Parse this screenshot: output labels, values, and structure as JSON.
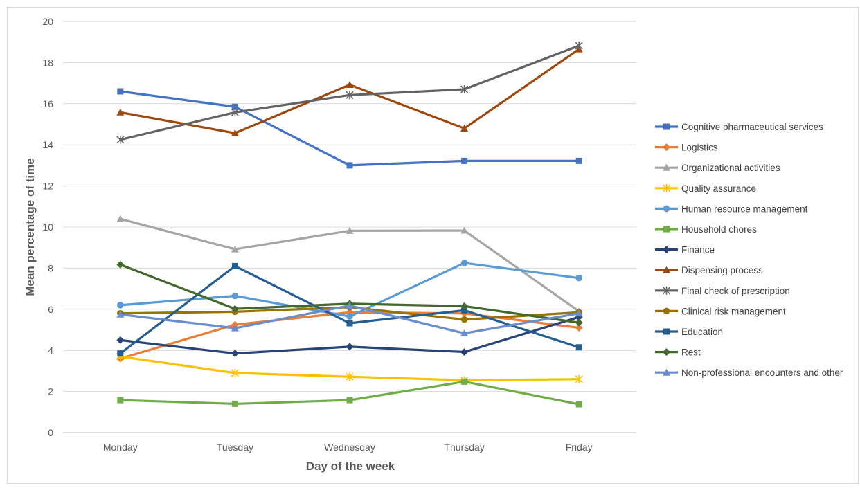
{
  "chart_data": {
    "type": "line",
    "title": "",
    "xlabel": "Day of the week",
    "ylabel": "Mean percentage of time",
    "categories": [
      "Monday",
      "Tuesday",
      "Wednesday",
      "Thursday",
      "Friday"
    ],
    "ylim": [
      0,
      20
    ],
    "yticks": [
      "0",
      "2",
      "4",
      "6",
      "8",
      "10",
      "12",
      "14",
      "16",
      "18",
      "20"
    ],
    "grid": true,
    "legend_position": "right",
    "series": [
      {
        "name": "Cognitive pharmaceutical services",
        "color": "#4472C4",
        "marker": "square",
        "values": [
          16.6,
          15.85,
          13.0,
          13.22,
          13.22
        ]
      },
      {
        "name": "Logistics",
        "color": "#ED7D31",
        "marker": "diamond",
        "values": [
          3.6,
          5.25,
          5.85,
          5.8,
          5.1
        ]
      },
      {
        "name": "Organizational activities",
        "color": "#A5A5A5",
        "marker": "triangle",
        "values": [
          10.4,
          8.92,
          9.82,
          9.83,
          5.9
        ]
      },
      {
        "name": "Quality assurance",
        "color": "#FFC000",
        "marker": "asterisk",
        "values": [
          3.7,
          2.9,
          2.72,
          2.55,
          2.6
        ]
      },
      {
        "name": "Human resource management",
        "color": "#5B9BD5",
        "marker": "circle",
        "values": [
          6.2,
          6.65,
          5.65,
          8.25,
          7.52
        ]
      },
      {
        "name": "Household chores",
        "color": "#70AD47",
        "marker": "square",
        "values": [
          1.58,
          1.4,
          1.58,
          2.48,
          1.38
        ]
      },
      {
        "name": "Finance",
        "color": "#264478",
        "marker": "diamond",
        "values": [
          4.5,
          3.85,
          4.18,
          3.92,
          5.62
        ]
      },
      {
        "name": "Dispensing process",
        "color": "#9E480E",
        "marker": "triangle",
        "values": [
          15.58,
          14.57,
          16.92,
          14.8,
          18.65
        ]
      },
      {
        "name": "Final check of prescription",
        "color": "#636363",
        "marker": "asterisk",
        "values": [
          14.25,
          15.58,
          16.42,
          16.7,
          18.82
        ]
      },
      {
        "name": "Clinical risk management",
        "color": "#997300",
        "marker": "circle",
        "values": [
          5.8,
          5.88,
          6.1,
          5.5,
          5.85
        ]
      },
      {
        "name": "Education",
        "color": "#255E91",
        "marker": "square",
        "values": [
          3.85,
          8.1,
          5.32,
          5.95,
          4.15
        ]
      },
      {
        "name": "Rest",
        "color": "#43682B",
        "marker": "diamond",
        "values": [
          8.17,
          6.02,
          6.27,
          6.15,
          5.35
        ]
      },
      {
        "name": "Non-professional encounters and other",
        "color": "#698ED0",
        "marker": "triangle",
        "values": [
          5.75,
          5.08,
          6.18,
          4.83,
          5.8
        ]
      }
    ]
  }
}
